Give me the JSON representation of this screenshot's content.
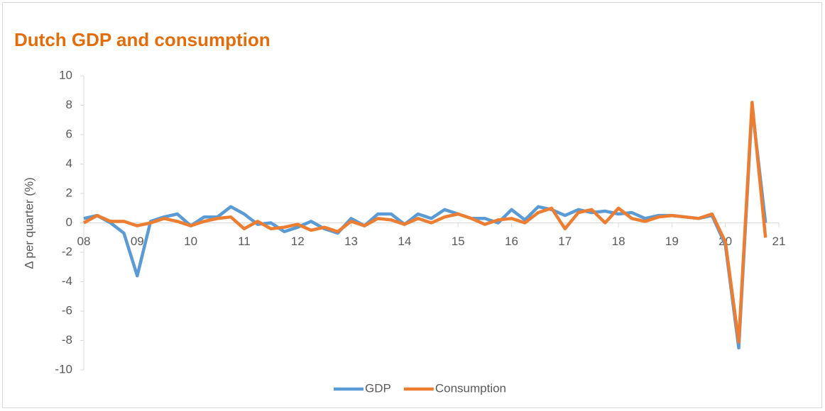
{
  "chart_data": {
    "type": "line",
    "title": "Dutch GDP and consumption",
    "y_label": "Δ per quarter (%)",
    "categories": [
      "08",
      null,
      null,
      null,
      "09",
      null,
      null,
      null,
      "10",
      null,
      null,
      null,
      "11",
      null,
      null,
      null,
      "12",
      null,
      null,
      null,
      "13",
      null,
      null,
      null,
      "14",
      null,
      null,
      null,
      "15",
      null,
      null,
      null,
      "16",
      null,
      null,
      null,
      "17",
      null,
      null,
      null,
      "18",
      null,
      null,
      null,
      "19",
      null,
      null,
      null,
      "20",
      null,
      null,
      null,
      "21"
    ],
    "series": [
      {
        "name": "GDP",
        "color": "#5b9bd5",
        "values": [
          0.3,
          0.5,
          0.0,
          -0.7,
          -3.6,
          0.1,
          0.4,
          0.6,
          -0.2,
          0.4,
          0.4,
          1.1,
          0.6,
          -0.1,
          0.0,
          -0.6,
          -0.3,
          0.1,
          -0.4,
          -0.7,
          0.3,
          -0.2,
          0.6,
          0.6,
          -0.1,
          0.6,
          0.3,
          0.9,
          0.6,
          0.3,
          0.3,
          0.0,
          0.9,
          0.2,
          1.1,
          0.9,
          0.5,
          0.9,
          0.7,
          0.8,
          0.6,
          0.7,
          0.3,
          0.5,
          0.5,
          0.4,
          0.3,
          0.5,
          -1.5,
          -8.5,
          7.9,
          0.0,
          null
        ]
      },
      {
        "name": "Consumption",
        "color": "#ed7d31",
        "values": [
          0.0,
          0.5,
          0.1,
          0.1,
          -0.2,
          0.0,
          0.3,
          0.1,
          -0.2,
          0.1,
          0.3,
          0.4,
          -0.4,
          0.1,
          -0.4,
          -0.3,
          -0.1,
          -0.5,
          -0.3,
          -0.6,
          0.1,
          -0.2,
          0.3,
          0.2,
          -0.1,
          0.3,
          0.0,
          0.4,
          0.6,
          0.3,
          -0.1,
          0.2,
          0.3,
          0.0,
          0.7,
          1.0,
          -0.4,
          0.7,
          0.9,
          0.0,
          1.0,
          0.3,
          0.1,
          0.4,
          0.5,
          0.4,
          0.3,
          0.6,
          -1.3,
          -8.1,
          8.2,
          -1.0,
          null
        ]
      }
    ],
    "ylim": [
      -10,
      10
    ],
    "yticks": [
      -10,
      -8,
      -6,
      -4,
      -2,
      0,
      2,
      4,
      6,
      8,
      10
    ],
    "grid": false,
    "legend": "bottom"
  }
}
